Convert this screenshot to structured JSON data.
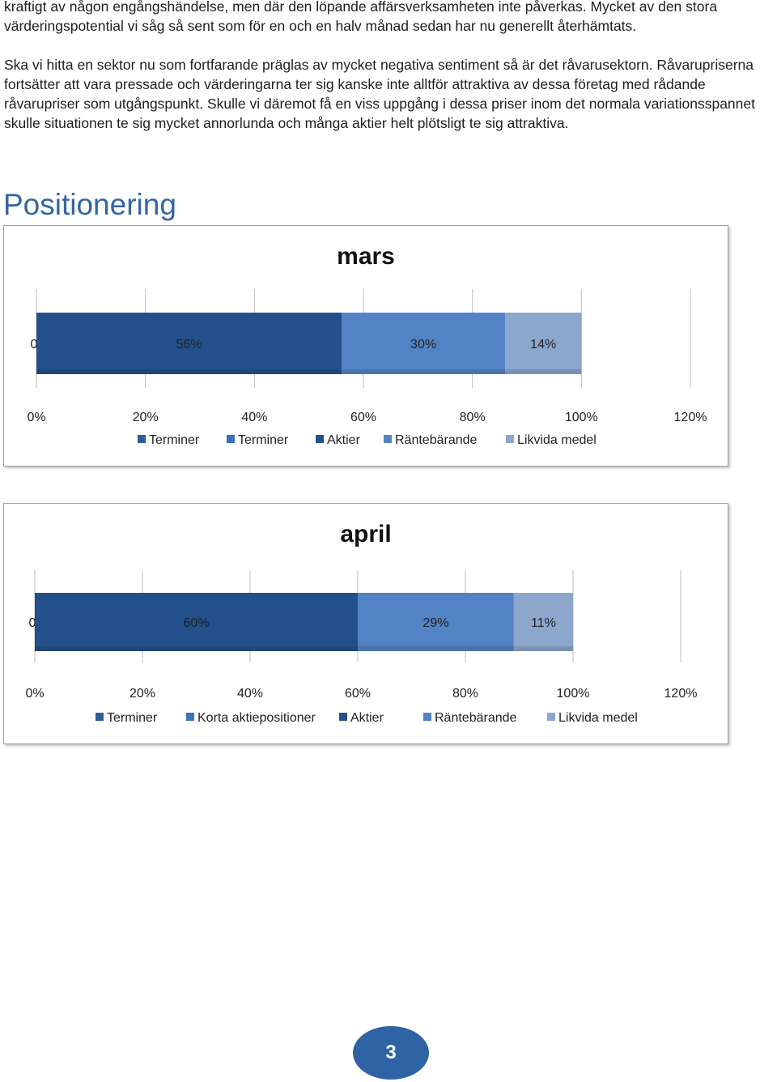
{
  "text": {
    "p1": "kraftigt av någon engångshändelse, men där den löpande affärsverksamheten inte påverkas. Mycket av den stora värderingspotential vi såg så sent som för en och en halv månad sedan har nu generellt återhämtats.",
    "p2": "Ska vi hitta en sektor nu som fortfarande präglas av mycket negativa sentiment så är det råvarusektorn. Råvarupriserna fortsätter att vara pressade och värderingarna ter sig kanske inte alltför attraktiva av dessa företag med rådande råvarupriser som utgångspunkt. Skulle vi däremot få en viss uppgång i dessa priser inom det normala variationsspannet skulle situationen te sig mycket annorlunda och många aktier helt plötsligt te sig attraktiva."
  },
  "heading": "Positionering",
  "page_number": "3",
  "colors": {
    "heading": "#3465a4",
    "badge": "#2e63a4"
  },
  "chart_data": [
    {
      "type": "bar",
      "orientation": "horizontal-stacked",
      "title": "mars",
      "series": [
        {
          "name": "Terminer",
          "value": 0,
          "label": "0%",
          "color": "#2b5d96"
        },
        {
          "name": "Terminer",
          "value": 0,
          "label": "",
          "color": "#3a72b8"
        },
        {
          "name": "Aktier",
          "value": 56,
          "label": "56%",
          "color": "#23508a"
        },
        {
          "name": "Räntebärande",
          "value": 30,
          "label": "30%",
          "color": "#5283c4"
        },
        {
          "name": "Likvida medel",
          "value": 14,
          "label": "14%",
          "color": "#8ca6cc"
        }
      ],
      "x_ticks": [
        "0%",
        "20%",
        "40%",
        "60%",
        "80%",
        "100%",
        "120%"
      ],
      "xlim": [
        0,
        120
      ],
      "grid": true,
      "legend_position": "bottom"
    },
    {
      "type": "bar",
      "orientation": "horizontal-stacked",
      "title": "april",
      "series": [
        {
          "name": "Terminer",
          "value": 0,
          "label": "0%",
          "color": "#2b5d96"
        },
        {
          "name": "Korta aktiepositioner",
          "value": 0,
          "label": "",
          "color": "#3a72b8"
        },
        {
          "name": "Aktier",
          "value": 60,
          "label": "60%",
          "color": "#23508a"
        },
        {
          "name": "Räntebärande",
          "value": 29,
          "label": "29%",
          "color": "#5283c4"
        },
        {
          "name": "Likvida medel",
          "value": 11,
          "label": "11%",
          "color": "#8ca6cc"
        }
      ],
      "x_ticks": [
        "0%",
        "20%",
        "40%",
        "60%",
        "80%",
        "100%",
        "120%"
      ],
      "xlim": [
        0,
        120
      ],
      "grid": true,
      "legend_position": "bottom"
    }
  ]
}
